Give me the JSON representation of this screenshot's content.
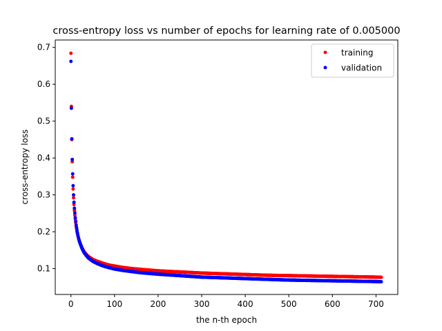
{
  "chart_data": {
    "type": "scatter",
    "title": "cross-entropy loss vs number of epochs for learning rate of 0.005000",
    "xlabel": "the n-th epoch",
    "ylabel": "cross-entropy loss",
    "xlim": [
      -36,
      750
    ],
    "ylim": [
      0.03,
      0.72
    ],
    "x_ticks": [
      0,
      100,
      200,
      300,
      400,
      500,
      600,
      700
    ],
    "y_ticks": [
      0.1,
      0.2,
      0.3,
      0.4,
      0.5,
      0.6,
      0.7
    ],
    "grid": false,
    "legend_position": "top-right",
    "series": [
      {
        "name": "training",
        "color": "#ff0000",
        "x": [
          0,
          1,
          2,
          3,
          4,
          5,
          6,
          7,
          8,
          9,
          10,
          12,
          14,
          16,
          18,
          20,
          25,
          30,
          35,
          40,
          50,
          60,
          70,
          80,
          90,
          100,
          120,
          140,
          160,
          180,
          200,
          250,
          300,
          350,
          400,
          450,
          500,
          550,
          600,
          650,
          700,
          712
        ],
        "y": [
          0.684,
          0.54,
          0.45,
          0.39,
          0.348,
          0.316,
          0.292,
          0.274,
          0.258,
          0.245,
          0.234,
          0.215,
          0.2,
          0.189,
          0.18,
          0.172,
          0.157,
          0.146,
          0.139,
          0.133,
          0.125,
          0.12,
          0.116,
          0.112,
          0.109,
          0.107,
          0.103,
          0.1,
          0.098,
          0.096,
          0.094,
          0.091,
          0.088,
          0.086,
          0.084,
          0.082,
          0.081,
          0.08,
          0.079,
          0.078,
          0.077,
          0.0765
        ]
      },
      {
        "name": "validation",
        "color": "#0000ff",
        "x": [
          0,
          1,
          2,
          3,
          4,
          5,
          6,
          7,
          8,
          9,
          10,
          12,
          14,
          16,
          18,
          20,
          25,
          30,
          35,
          40,
          50,
          60,
          70,
          80,
          90,
          100,
          120,
          140,
          160,
          180,
          200,
          250,
          300,
          350,
          400,
          450,
          500,
          550,
          600,
          650,
          700,
          712
        ],
        "y": [
          0.662,
          0.535,
          0.452,
          0.396,
          0.357,
          0.325,
          0.3,
          0.28,
          0.264,
          0.251,
          0.238,
          0.218,
          0.203,
          0.19,
          0.18,
          0.172,
          0.156,
          0.144,
          0.136,
          0.129,
          0.12,
          0.114,
          0.109,
          0.105,
          0.102,
          0.099,
          0.095,
          0.092,
          0.089,
          0.087,
          0.085,
          0.081,
          0.077,
          0.075,
          0.073,
          0.071,
          0.069,
          0.068,
          0.067,
          0.066,
          0.065,
          0.0645
        ]
      }
    ]
  }
}
